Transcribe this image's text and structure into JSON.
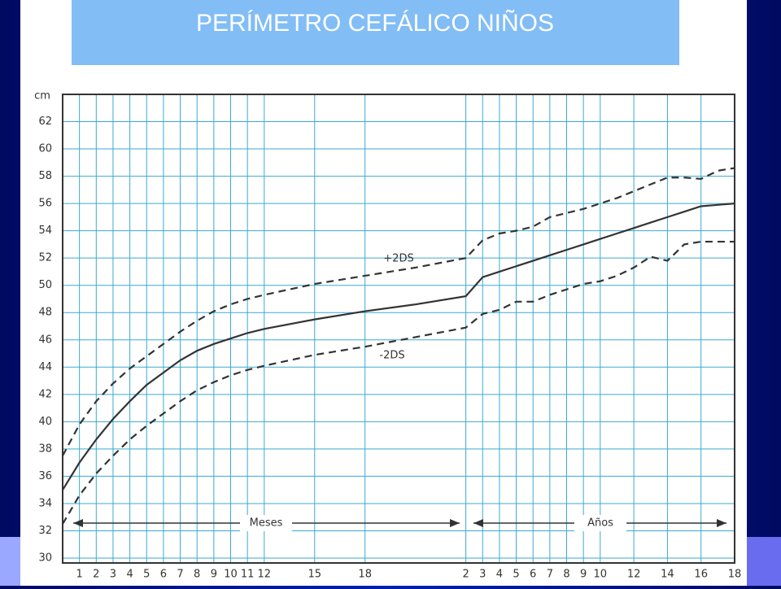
{
  "chart_data": {
    "type": "line",
    "title": "PERÍMETRO CEFÁLICO NIÑOS",
    "ylabel": "cm",
    "x": [
      0,
      1,
      2,
      3,
      4,
      5,
      6,
      7,
      8,
      9,
      10,
      11,
      12,
      15,
      18,
      21,
      24,
      25,
      26,
      27,
      28,
      29,
      30,
      31,
      32,
      33,
      34,
      35,
      36,
      37,
      38,
      39,
      40
    ],
    "series": [
      {
        "name": "+2DS",
        "color": "#333333",
        "dashed": true,
        "values": [
          37.5,
          39.8,
          41.5,
          42.8,
          43.9,
          44.8,
          45.7,
          46.6,
          47.4,
          48.1,
          48.6,
          49.0,
          49.3,
          50.1,
          50.7,
          51.3,
          52.0,
          53.3,
          53.8,
          54.0,
          54.3,
          55.0,
          55.3,
          55.6,
          56.0,
          56.4,
          56.9,
          57.4,
          57.9,
          57.9,
          57.8,
          58.4,
          58.6
        ]
      },
      {
        "color": "#333333",
        "dashed": false,
        "values": [
          35.0,
          37.0,
          38.7,
          40.2,
          41.5,
          42.7,
          43.6,
          44.5,
          45.2,
          45.7,
          46.1,
          46.5,
          46.8,
          47.5,
          48.1,
          48.6,
          49.2,
          50.6,
          51.0,
          51.4,
          51.8,
          52.2,
          52.6,
          53.0,
          53.4,
          53.8,
          54.2,
          54.6,
          55.0,
          55.4,
          55.8,
          55.9,
          56.0
        ]
      },
      {
        "name": "-2DS",
        "color": "#333333",
        "dashed": true,
        "values": [
          32.5,
          34.6,
          36.2,
          37.5,
          38.7,
          39.7,
          40.6,
          41.5,
          42.3,
          42.9,
          43.4,
          43.8,
          44.1,
          44.9,
          45.5,
          46.2,
          46.9,
          47.9,
          48.2,
          48.8,
          48.8,
          49.3,
          49.7,
          50.1,
          50.3,
          50.7,
          51.3,
          52.1,
          51.8,
          53.0,
          53.2,
          53.2,
          53.2
        ]
      }
    ],
    "annotations": [
      "Meses",
      "Años"
    ],
    "xlim": [
      0,
      40
    ],
    "xticks": [
      1,
      2,
      3,
      4,
      5,
      6,
      7,
      8,
      9,
      10,
      11,
      12,
      15,
      18,
      {
        "value": 24,
        "label": "2"
      },
      {
        "value": 25,
        "label": "3"
      },
      {
        "value": 26,
        "label": "4"
      },
      {
        "value": 27,
        "label": "5"
      },
      {
        "value": 28,
        "label": "6"
      },
      {
        "value": 29,
        "label": "7"
      },
      {
        "value": 30,
        "label": "8"
      },
      {
        "value": 31,
        "label": "9"
      },
      {
        "value": 32,
        "label": "10"
      },
      {
        "value": 34,
        "label": "12"
      },
      {
        "value": 36,
        "label": "14"
      },
      {
        "value": 38,
        "label": "16"
      },
      {
        "value": 40,
        "label": "18"
      }
    ],
    "ylim": [
      30,
      64
    ],
    "yticks": [
      30,
      32,
      34,
      36,
      38,
      40,
      42,
      44,
      46,
      48,
      50,
      52,
      54,
      56,
      58,
      60,
      62
    ],
    "grid": true,
    "grid_color": "#3aaad0"
  }
}
